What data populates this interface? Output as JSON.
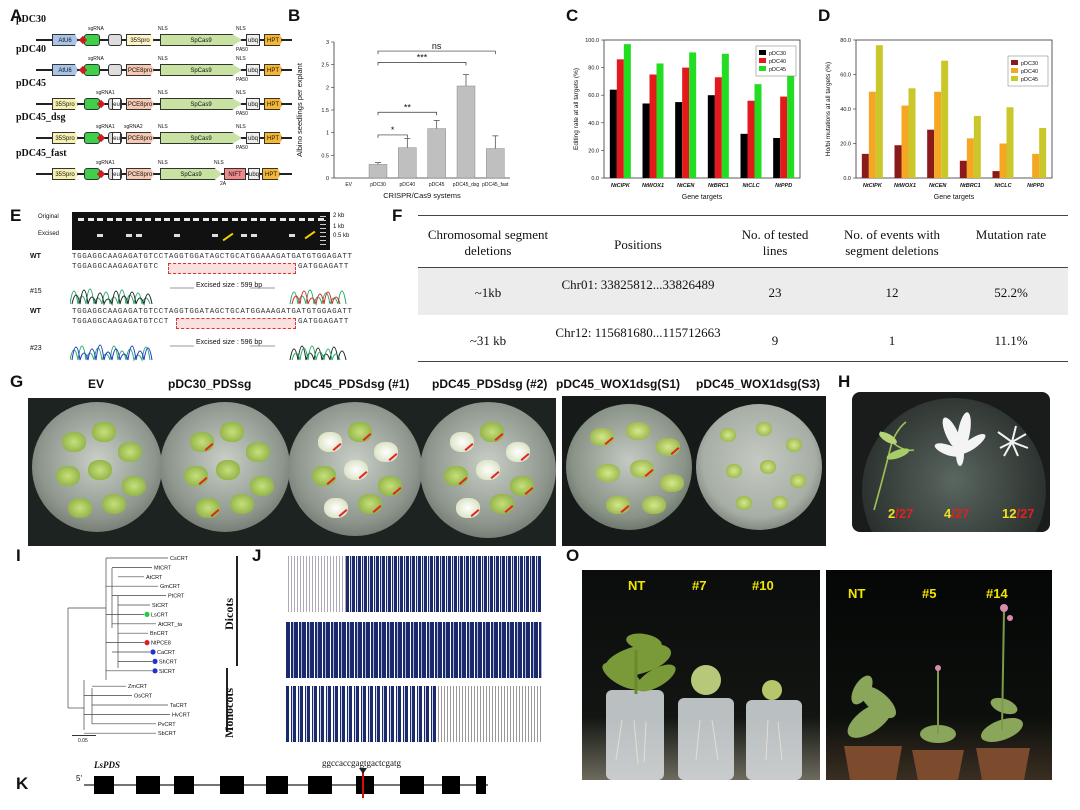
{
  "panel_labels": [
    "A",
    "B",
    "C",
    "D",
    "E",
    "F",
    "G",
    "H",
    "I",
    "J",
    "K",
    "O"
  ],
  "constructs": [
    {
      "name": "pDC30",
      "sgrna": "sgRNA",
      "promoter1": "AtU6",
      "promoter2": "35Spro",
      "cas": "SpCas9",
      "nls1": "NLS",
      "nls2": "NLS",
      "term": "ubq",
      "marker": "HPT",
      "pa": "PA50"
    },
    {
      "name": "pDC40",
      "sgrna": "sgRNA",
      "promoter1": "AtU6",
      "promoter2": "PCE8pro",
      "cas": "SpCas9",
      "nls1": "NLS",
      "nls2": "NLS",
      "term": "ubq",
      "marker": "HPT",
      "pa": "PA50"
    },
    {
      "name": "pDC45",
      "sgrna": "sgRNA1",
      "promoter1": "35Spro",
      "promoter2": "PCE8pro",
      "eu": "eu",
      "cas": "SpCas9",
      "nls1": "NLS",
      "nls2": "NLS",
      "term": "ubq",
      "marker": "HPT",
      "pa": "PA50"
    },
    {
      "name": "pDC45_dsg",
      "sgrna": "sgRNA1",
      "sgrna2": "sgRNA2",
      "promoter1": "35Spro",
      "promoter2": "PCE8pro",
      "eu": "eu",
      "cas": "SpCas9",
      "nls1": "NLS",
      "nls2": "NLS",
      "term": "ubq",
      "marker": "HPT",
      "pa": "PA50"
    },
    {
      "name": "pDC45_fast",
      "sgrna": "sgRNA1",
      "promoter1": "35Spro",
      "promoter2": "PCE8pro",
      "eu": "eu",
      "cas": "SpCas9",
      "nls1": "NLS",
      "nls2": "NLS",
      "term": "ubq",
      "marker": "HPT",
      "nlft": "NtFT",
      "t2a": "2A"
    }
  ],
  "chart_data": [
    {
      "id": "B",
      "type": "bar",
      "categories": [
        "EV",
        "pDC30",
        "pDC40",
        "pDC45",
        "pDC45_dsg",
        "pDC45_fast"
      ],
      "values": [
        0.0,
        0.3,
        0.67,
        1.09,
        2.03,
        0.65
      ],
      "errors": [
        0.0,
        0.04,
        0.2,
        0.18,
        0.25,
        0.28
      ],
      "xlabel": "CRISPR/Cas9 systems",
      "ylabel": "Albino seedlings per explant",
      "ylim": [
        0,
        3.0
      ],
      "yticks": [
        0,
        0.5,
        1.0,
        1.5,
        2.0,
        2.5,
        3.0
      ],
      "significance": [
        {
          "from": "pDC30",
          "to": "pDC40",
          "label": "*"
        },
        {
          "from": "pDC30",
          "to": "pDC45",
          "label": "**"
        },
        {
          "from": "pDC30",
          "to": "pDC45_dsg",
          "label": "***"
        },
        {
          "from": "pDC30",
          "to": "pDC45_fast",
          "label": "ns"
        }
      ],
      "bar_color": "#bfbfbf"
    },
    {
      "id": "C",
      "type": "bar",
      "categories": [
        "NtCIPK",
        "NtWOX1",
        "NtCEN",
        "NtBRC1",
        "NtCLC",
        "NtPPD"
      ],
      "series": [
        {
          "name": "pDC30",
          "values": [
            64,
            54,
            55,
            60,
            32,
            29
          ],
          "color": "#000000"
        },
        {
          "name": "pDC40",
          "values": [
            86,
            75,
            80,
            73,
            56,
            59
          ],
          "color": "#e31a1c"
        },
        {
          "name": "pDC45",
          "values": [
            97,
            83,
            91,
            90,
            68,
            75
          ],
          "color": "#22dd22"
        }
      ],
      "xlabel": "Gene targets",
      "ylabel": "Editing rate at all targets (%)",
      "ylim": [
        0,
        100
      ],
      "yticks": [
        0,
        20,
        40,
        60,
        80,
        100
      ],
      "legend": "top-right"
    },
    {
      "id": "D",
      "type": "bar",
      "categories": [
        "NtCIPK",
        "NtWOX1",
        "NtCEN",
        "NtBRC1",
        "NtCLC",
        "NtPPD"
      ],
      "series": [
        {
          "name": "pDC30",
          "values": [
            14,
            19,
            28,
            10,
            4,
            0
          ],
          "color": "#8b1a1a"
        },
        {
          "name": "pDC40",
          "values": [
            50,
            42,
            50,
            23,
            20,
            14
          ],
          "color": "#f5a623"
        },
        {
          "name": "pDC45",
          "values": [
            77,
            52,
            68,
            36,
            41,
            29
          ],
          "color": "#c9c72a"
        }
      ],
      "xlabel": "Gene targets",
      "ylabel": "Ho/bi mutations at all targets (%)",
      "ylim": [
        0,
        80
      ],
      "yticks": [
        0,
        20,
        40,
        60,
        80
      ],
      "legend": "top-right"
    }
  ],
  "gel": {
    "row_labels": [
      "Original",
      "Excised"
    ],
    "size_labels": [
      "2 kb",
      "1 kb",
      "0.5 kb"
    ],
    "wt_label": "WT",
    "wt_seq": "TGGAGGCAAGAGATGTCCTAGGTGGATAGCTGCATGGAAAGATGATGTGGAGATT",
    "m15_seq": "TGGAGGCAAGAGATGTC",
    "m15_tail": "GATGGAGATT",
    "m15_label": "#15",
    "m15_size": "Excised size : 599 bp",
    "m23_seq": "TGGAGGCAAGAGATGTCCT",
    "m23_tail": "GATGGAGATT",
    "m23_label": "#23",
    "m23_size": "Excised size : 596 bp"
  },
  "table_f": {
    "headers": [
      "Chromosomal segment deletions",
      "Positions",
      "No. of tested lines",
      "No. of events with segment deletions",
      "Mutation rate"
    ],
    "rows": [
      [
        "~1kb",
        "Chr01: 33825812...33826489",
        "23",
        "12",
        "52.2%"
      ],
      [
        "~31 kb",
        "Chr12: 115681680...115712663",
        "9",
        "1",
        "11.1%"
      ]
    ]
  },
  "plates": {
    "labels": [
      "EV",
      "pDC30_PDSsg",
      "pDC45_PDSdsg (#1)",
      "pDC45_PDSdsg (#2)",
      "pDC45_WOX1dsg(S1)",
      "pDC45_WOX1dsg(S3)"
    ]
  },
  "seedlings_h": {
    "counts": [
      {
        "num": "2",
        "den": "/27"
      },
      {
        "num": "4",
        "den": "/27"
      },
      {
        "num": "12",
        "den": "/27"
      }
    ]
  },
  "tree": {
    "taxa": [
      "CsCRT",
      "MtCRT",
      "AtCRT",
      "GmCRT",
      "PtCRT",
      "StCRT",
      "LsCRT",
      "AtCRT_ta",
      "BnCRT",
      "NtPCE8",
      "CaCRT",
      "ShCRT",
      "SlCRT",
      "ZmCRT",
      "OsCRT",
      "TaCRT",
      "HvCRT",
      "PvCRT",
      "SbCRT"
    ],
    "groups": [
      "Dicots",
      "Monocots"
    ],
    "scale": "0.05"
  },
  "gene_k": {
    "name": "LsPDS",
    "five_prime": "5'",
    "sgrna_seq": "ggccaccgagtgactcgatg"
  },
  "plants_o": {
    "left_labels": [
      "NT",
      "#7",
      "#10"
    ],
    "right_labels": [
      "NT",
      "#5",
      "#14"
    ]
  }
}
